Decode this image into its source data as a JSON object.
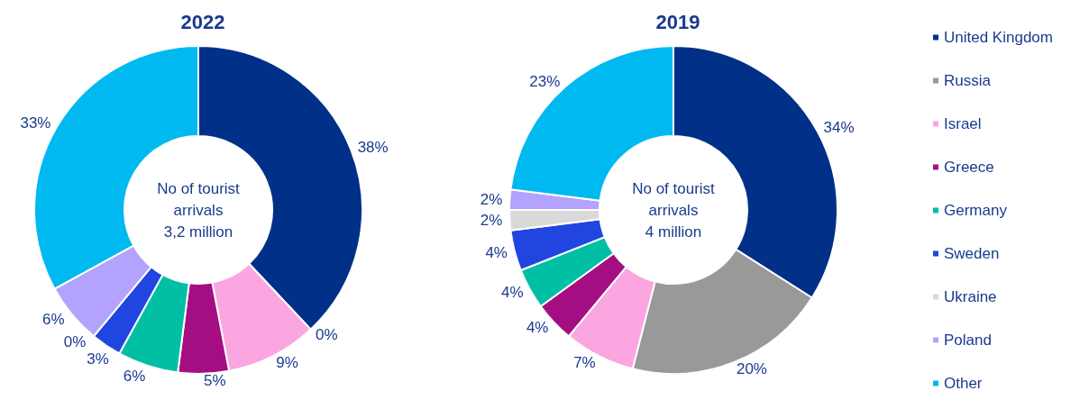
{
  "chart_data": [
    {
      "type": "donut",
      "title": "2022",
      "categories": [
        null,
        null,
        null,
        null,
        null,
        null,
        null,
        null,
        null
      ],
      "values": [
        38,
        0,
        9,
        5,
        6,
        3,
        0,
        6,
        33
      ],
      "value_labels": [
        "38%",
        "0%",
        "9%",
        "5%",
        "6%",
        "3%",
        "0%",
        "6%",
        "33%"
      ],
      "colors": [
        "#003087",
        "#999999",
        "#fba6e0",
        "#a50e82",
        "#00bfa5",
        "#2145e0",
        "#d9d9d9",
        "#b4a2ff",
        "#00b9f1"
      ],
      "annotations": [
        "No of tourist\narrivals\n3,2 million"
      ]
    },
    {
      "type": "donut",
      "title": "2019",
      "categories": [
        "United Kingdom",
        "Russia",
        "Israel",
        "Greece",
        "Germany",
        "Sweden",
        "Ukraine",
        "Poland",
        "Other"
      ],
      "values": [
        34,
        20,
        7,
        4,
        4,
        4,
        2,
        2,
        23
      ],
      "value_labels": [
        "34%",
        "20%",
        "7%",
        "4%",
        "4%",
        "4%",
        "2%",
        "2%",
        "23%"
      ],
      "colors": [
        "#003087",
        "#999999",
        "#fba6e0",
        "#a50e82",
        "#00bfa5",
        "#2145e0",
        "#d9d9d9",
        "#b4a2ff",
        "#00b9f1"
      ],
      "legend": "right",
      "annotations": [
        "No of tourist\narrivals\n4 million"
      ]
    }
  ]
}
